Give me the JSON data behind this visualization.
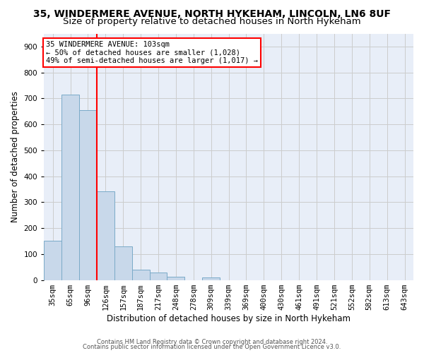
{
  "title_line1": "35, WINDERMERE AVENUE, NORTH HYKEHAM, LINCOLN, LN6 8UF",
  "title_line2": "Size of property relative to detached houses in North Hykeham",
  "xlabel": "Distribution of detached houses by size in North Hykeham",
  "ylabel": "Number of detached properties",
  "bar_color": "#c8d8ea",
  "bar_edge_color": "#7aaac8",
  "categories": [
    "35sqm",
    "65sqm",
    "96sqm",
    "126sqm",
    "157sqm",
    "187sqm",
    "217sqm",
    "248sqm",
    "278sqm",
    "309sqm",
    "339sqm",
    "369sqm",
    "400sqm",
    "430sqm",
    "461sqm",
    "491sqm",
    "521sqm",
    "552sqm",
    "582sqm",
    "613sqm",
    "643sqm"
  ],
  "values": [
    150,
    715,
    655,
    343,
    130,
    40,
    30,
    13,
    0,
    9,
    0,
    0,
    0,
    0,
    0,
    0,
    0,
    0,
    0,
    0,
    0
  ],
  "red_line_x": 2.5,
  "annotation_line1": "35 WINDERMERE AVENUE: 103sqm",
  "annotation_line2": "← 50% of detached houses are smaller (1,028)",
  "annotation_line3": "49% of semi-detached houses are larger (1,017) →",
  "annotation_box_color": "white",
  "annotation_box_edge_color": "red",
  "ylim": [
    0,
    950
  ],
  "yticks": [
    0,
    100,
    200,
    300,
    400,
    500,
    600,
    700,
    800,
    900
  ],
  "grid_color": "#cccccc",
  "background_color": "#e8eef8",
  "footer_line1": "Contains HM Land Registry data © Crown copyright and database right 2024.",
  "footer_line2": "Contains public sector information licensed under the Open Government Licence v3.0.",
  "title_fontsize": 10,
  "subtitle_fontsize": 9.5,
  "label_fontsize": 8.5,
  "tick_fontsize": 7.5,
  "annot_fontsize": 7.5,
  "footer_fontsize": 6
}
